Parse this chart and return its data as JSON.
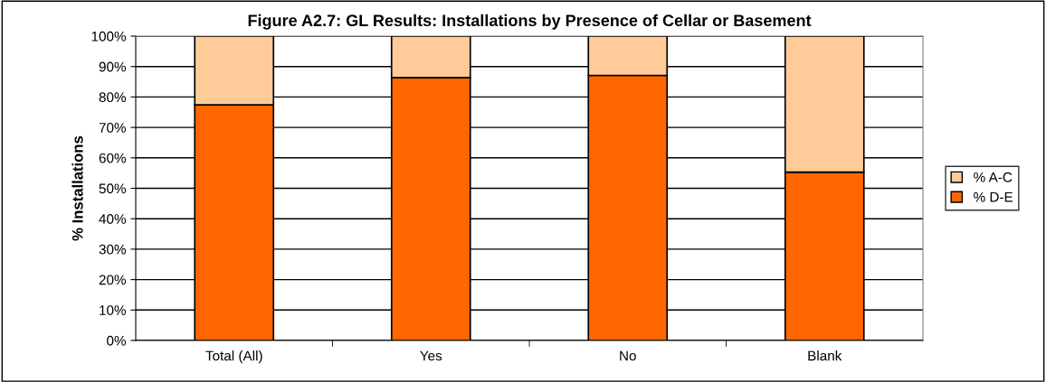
{
  "chart_data": {
    "type": "bar",
    "stacked": true,
    "title": "Figure A2.7: GL Results: Installations by Presence of Cellar or Basement",
    "ylabel": "% Installations",
    "categories": [
      "Total (All)",
      "Yes",
      "No",
      "Blank"
    ],
    "series": [
      {
        "name": "% D-E",
        "color": "#ff6600",
        "values": [
          77.4,
          86.4,
          87.1,
          55.3
        ]
      },
      {
        "name": "% A-C",
        "color": "#ffcc99",
        "values": [
          22.6,
          13.6,
          12.9,
          44.7
        ]
      }
    ],
    "ylim": [
      0,
      100
    ],
    "yticks": [
      {
        "value": 0,
        "label": "0%"
      },
      {
        "value": 10,
        "label": "10%"
      },
      {
        "value": 20,
        "label": "20%"
      },
      {
        "value": 30,
        "label": "30%"
      },
      {
        "value": 40,
        "label": "40%"
      },
      {
        "value": 50,
        "label": "50%"
      },
      {
        "value": 60,
        "label": "60%"
      },
      {
        "value": 70,
        "label": "70%"
      },
      {
        "value": 80,
        "label": "80%"
      },
      {
        "value": 90,
        "label": "90%"
      },
      {
        "value": 100,
        "label": "100%"
      }
    ],
    "grid": "y",
    "legend": "right"
  }
}
